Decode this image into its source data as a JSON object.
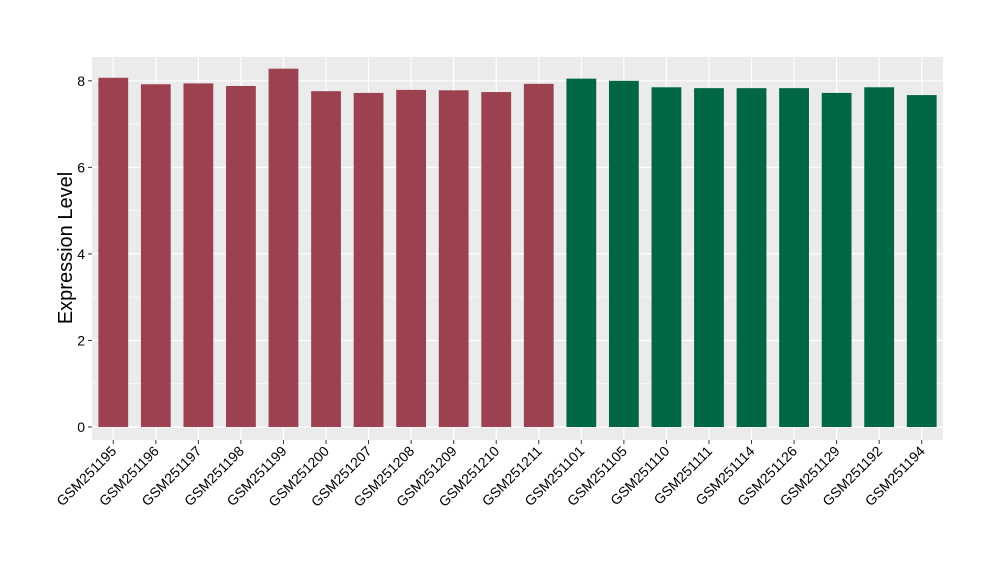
{
  "chart_data": {
    "type": "bar",
    "title": "",
    "xlabel": "",
    "ylabel": "Expression Level",
    "ylim": [
      -0.3,
      8.55
    ],
    "yticks": [
      0,
      2,
      4,
      6,
      8
    ],
    "grid": true,
    "legend": "none",
    "categories": [
      "GSM251195",
      "GSM251196",
      "GSM251197",
      "GSM251198",
      "GSM251199",
      "GSM251200",
      "GSM251207",
      "GSM251208",
      "GSM251209",
      "GSM251210",
      "GSM251211",
      "GSM251101",
      "GSM251105",
      "GSM251110",
      "GSM251111",
      "GSM251114",
      "GSM251126",
      "GSM251129",
      "GSM251192",
      "GSM251194"
    ],
    "values": [
      8.07,
      7.92,
      7.94,
      7.88,
      8.28,
      7.76,
      7.72,
      7.79,
      7.78,
      7.74,
      7.93,
      8.05,
      8.0,
      7.85,
      7.83,
      7.83,
      7.83,
      7.72,
      7.85,
      7.67
    ],
    "bar_colors": [
      "#9B4150",
      "#9B4150",
      "#9B4150",
      "#9B4150",
      "#9B4150",
      "#9B4150",
      "#9B4150",
      "#9B4150",
      "#9B4150",
      "#9B4150",
      "#9B4150",
      "#006644",
      "#006644",
      "#006644",
      "#006644",
      "#006644",
      "#006644",
      "#006644",
      "#006644",
      "#006644"
    ],
    "panel_color": "#EBEBEB",
    "grid_color": "#FFFFFF"
  }
}
